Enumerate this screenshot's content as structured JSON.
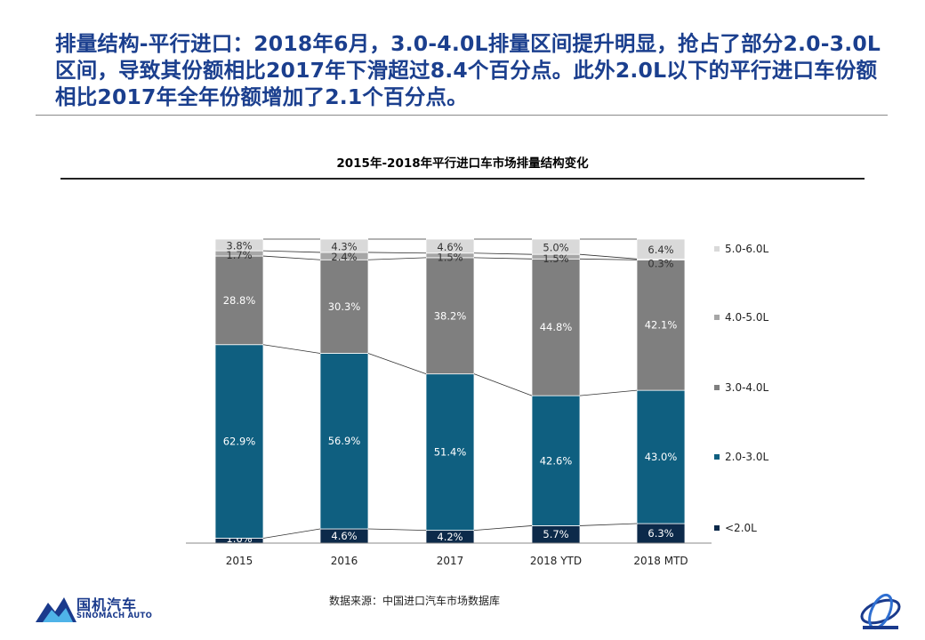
{
  "headline": "排量结构-平行进口：2018年6月，3.0-4.0L排量区间提升明显，抢占了部分2.0-3.0L区间，导致其份额相比2017年下滑超过8.4个百分点。此外2.0L以下的平行进口车份额相比2017年全年份额增加了2.1个百分点。",
  "source": "数据来源：中国进口汽车市场数据库",
  "logo": {
    "cn": "国机汽车",
    "en": "SINOMACH AUTO"
  },
  "chart_data": {
    "type": "bar",
    "stacked": true,
    "percent": true,
    "title": "2015年-2018年平行进口车市场排量结构变化",
    "categories": [
      "2015",
      "2016",
      "2017",
      "2018 YTD",
      "2018 MTD"
    ],
    "series": [
      {
        "name": "<2.0L",
        "color": "#0c2a4a",
        "values": [
          1.6,
          4.6,
          4.2,
          5.7,
          6.3
        ],
        "labels": [
          "1.6%",
          "4.6%",
          "4.2%",
          "5.7%",
          "6.3%"
        ]
      },
      {
        "name": "2.0-3.0L",
        "color": "#0f5f80",
        "values": [
          62.9,
          56.9,
          51.4,
          42.6,
          43.0
        ],
        "labels": [
          "62.9%",
          "56.9%",
          "51.4%",
          "42.6%",
          "43.0%"
        ]
      },
      {
        "name": "3.0-4.0L",
        "color": "#7f7f7f",
        "values": [
          28.8,
          30.3,
          38.2,
          44.8,
          42.1
        ],
        "labels": [
          "28.8%",
          "30.3%",
          "38.2%",
          "44.8%",
          "42.1%"
        ]
      },
      {
        "name": "4.0-5.0L",
        "color": "#a6a6a6",
        "values": [
          1.7,
          2.4,
          1.5,
          1.5,
          0.3
        ],
        "labels": [
          "1.7%",
          "2.4%",
          "1.5%",
          "1.5%",
          "0.3%"
        ]
      },
      {
        "name": "5.0-6.0L",
        "color": "#d9d9d9",
        "values": [
          3.8,
          4.3,
          4.6,
          5.0,
          6.4
        ],
        "labels": [
          "3.8%",
          "4.3%",
          "4.6%",
          "5.0%",
          "6.4%"
        ]
      }
    ],
    "legend_position": "right",
    "grid": false
  }
}
